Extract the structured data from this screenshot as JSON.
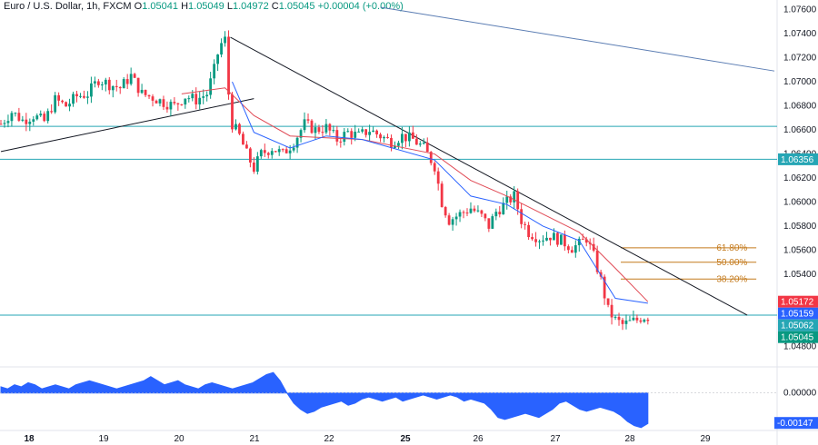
{
  "legend": {
    "symbol": "Euro / U.S. Dollar, 1h, FXCM",
    "open_label": "O",
    "open": "1.05041",
    "high_label": "H",
    "high": "1.05049",
    "low_label": "L",
    "low": "1.04972",
    "close_label": "C",
    "close": "1.05045",
    "change": "+0.00004 (+0.00%)"
  },
  "colors": {
    "up": "#089981",
    "down": "#f23645",
    "ema_fast": "#2962ff",
    "ema_slow": "#e04a55",
    "hline": "#26a6b5",
    "trendline": "#131722",
    "channel": "#5b7db3",
    "fib": "#c47a1c",
    "osc": "#2962ff"
  },
  "chart_data": [
    {
      "type": "candlestick",
      "title": "",
      "ylim": [
        1.0466,
        1.0762
      ],
      "y_ticks": [
        "1.07600",
        "1.07400",
        "1.07200",
        "1.07000",
        "1.06800",
        "1.06600",
        "1.06400",
        "1.06200",
        "1.06000",
        "1.05800",
        "1.05600",
        "1.05400",
        "1.04800"
      ],
      "y_tick_values": [
        1.076,
        1.074,
        1.072,
        1.07,
        1.068,
        1.066,
        1.064,
        1.062,
        1.06,
        1.058,
        1.056,
        1.054,
        1.048
      ],
      "x_ticks": [
        "18",
        "19",
        "20",
        "21",
        "22",
        "25",
        "26",
        "27",
        "28",
        "29"
      ],
      "x_tick_bold": [
        "18",
        "25"
      ],
      "price_tags": [
        {
          "label": "1.06356",
          "value": 1.06356,
          "color": "#26a6b5"
        },
        {
          "label": "1.05172",
          "value": 1.05172,
          "color": "#f23645"
        },
        {
          "label": "1.05159",
          "value": 1.05159,
          "color": "#2962ff"
        },
        {
          "label": "1.05062",
          "value": 1.05062,
          "color": "#26a6b5"
        },
        {
          "label": "1.05045",
          "value": 1.05045,
          "color": "#089981"
        }
      ],
      "horizontal_levels": [
        1.0663,
        1.06356,
        1.0506
      ],
      "fib_levels": [
        {
          "label": "61.80%",
          "value": 1.0562
        },
        {
          "label": "50.00%",
          "value": 1.055
        },
        {
          "label": "38.20%",
          "value": 1.0536
        }
      ],
      "close_path": [
        [
          0,
          1.0665
        ],
        [
          6,
          1.0675
        ],
        [
          12,
          1.0668
        ],
        [
          18,
          1.0672
        ],
        [
          24,
          1.0667
        ],
        [
          30,
          1.0685
        ],
        [
          36,
          1.068
        ],
        [
          42,
          1.0688
        ],
        [
          48,
          1.069
        ],
        [
          54,
          1.0702
        ],
        [
          60,
          1.0698
        ],
        [
          66,
          1.0695
        ],
        [
          72,
          1.0705
        ],
        [
          78,
          1.069
        ],
        [
          84,
          1.0687
        ],
        [
          90,
          1.0683
        ],
        [
          96,
          1.068
        ],
        [
          102,
          1.0688
        ],
        [
          108,
          1.0685
        ],
        [
          114,
          1.069
        ],
        [
          118,
          1.071
        ],
        [
          121,
          1.073
        ],
        [
          124,
          1.0735
        ],
        [
          126,
          1.069
        ],
        [
          128,
          1.0665
        ],
        [
          132,
          1.0655
        ],
        [
          136,
          1.064
        ],
        [
          140,
          1.0628
        ],
        [
          144,
          1.064
        ],
        [
          150,
          1.0645
        ],
        [
          156,
          1.064
        ],
        [
          162,
          1.065
        ],
        [
          168,
          1.0665
        ],
        [
          174,
          1.066
        ],
        [
          180,
          1.0662
        ],
        [
          186,
          1.0652
        ],
        [
          192,
          1.0658
        ],
        [
          198,
          1.0655
        ],
        [
          204,
          1.066
        ],
        [
          210,
          1.0655
        ],
        [
          216,
          1.065
        ],
        [
          222,
          1.0655
        ],
        [
          228,
          1.0652
        ],
        [
          234,
          1.0645
        ],
        [
          240,
          1.063
        ],
        [
          244,
          1.06
        ],
        [
          248,
          1.0585
        ],
        [
          254,
          1.059
        ],
        [
          260,
          1.0595
        ],
        [
          266,
          1.0588
        ],
        [
          270,
          1.058
        ],
        [
          274,
          1.0592
        ],
        [
          280,
          1.06
        ],
        [
          284,
          1.0605
        ],
        [
          288,
          1.0585
        ],
        [
          292,
          1.0575
        ],
        [
          298,
          1.057
        ],
        [
          304,
          1.0572
        ],
        [
          310,
          1.0568
        ],
        [
          316,
          1.0562
        ],
        [
          320,
          1.0565
        ],
        [
          324,
          1.057
        ],
        [
          328,
          1.0555
        ],
        [
          332,
          1.0535
        ],
        [
          336,
          1.051
        ],
        [
          340,
          1.0502
        ],
        [
          344,
          1.0498
        ],
        [
          348,
          1.05
        ],
        [
          352,
          1.0502
        ],
        [
          355,
          1.0505
        ],
        [
          358,
          1.05045
        ]
      ],
      "trendlines": [
        {
          "name": "support",
          "from": [
            0,
            1.0642
          ],
          "to": [
            140,
            1.0686
          ],
          "color": "#131722"
        },
        {
          "name": "down",
          "from": [
            127,
            1.0737
          ],
          "to": [
            413,
            1.0506
          ],
          "color": "#131722"
        },
        {
          "name": "channel",
          "from": [
            210,
            1.0762
          ],
          "to": [
            428,
            1.0709
          ],
          "color": "#5b7db3"
        }
      ],
      "ema_fast": [
        [
          128,
          1.07
        ],
        [
          140,
          1.0658
        ],
        [
          160,
          1.0645
        ],
        [
          180,
          1.0655
        ],
        [
          200,
          1.0652
        ],
        [
          240,
          1.0635
        ],
        [
          260,
          1.0605
        ],
        [
          280,
          1.0598
        ],
        [
          300,
          1.058
        ],
        [
          320,
          1.0568
        ],
        [
          340,
          1.052
        ],
        [
          358,
          1.05159
        ]
      ],
      "ema_slow": [
        [
          100,
          1.069
        ],
        [
          124,
          1.0695
        ],
        [
          140,
          1.0672
        ],
        [
          160,
          1.0655
        ],
        [
          200,
          1.0652
        ],
        [
          240,
          1.064
        ],
        [
          260,
          1.0618
        ],
        [
          280,
          1.0605
        ],
        [
          300,
          1.059
        ],
        [
          320,
          1.0575
        ],
        [
          340,
          1.0545
        ],
        [
          358,
          1.05172
        ]
      ]
    },
    {
      "type": "area",
      "title": "",
      "ylim": [
        -0.00175,
        0.0011
      ],
      "y_ticks": [
        "0.00000",
        "-0.00147"
      ],
      "y_tick_values": [
        0.0,
        -0.00147
      ],
      "values": [
        0.0003,
        0.0002,
        0.0004,
        0.0003,
        0.0005,
        0.0004,
        0.0002,
        0.0003,
        0.0004,
        0.0003,
        0.0002,
        0.0004,
        0.0005,
        0.0006,
        0.0005,
        0.0004,
        0.0003,
        0.0002,
        0.0003,
        0.0004,
        0.0005,
        0.0006,
        0.0008,
        0.0006,
        0.0004,
        0.0005,
        0.0006,
        0.0004,
        0.0003,
        0.0002,
        0.0004,
        0.0005,
        0.0004,
        0.0003,
        0.0002,
        0.0003,
        0.0004,
        0.0005,
        0.0007,
        0.0009,
        0.001,
        0.0006,
        0.0,
        -0.0005,
        -0.0008,
        -0.001,
        -0.0009,
        -0.0007,
        -0.0006,
        -0.0005,
        -0.0004,
        -0.0006,
        -0.0005,
        -0.0003,
        -0.0002,
        -0.0003,
        -0.0004,
        -0.0003,
        -0.0002,
        -0.0004,
        -0.0003,
        -0.0002,
        -0.0001,
        -0.0002,
        -0.0003,
        -0.0002,
        -0.0001,
        -0.0002,
        -0.0004,
        -0.0003,
        -0.0004,
        -0.0005,
        -0.0008,
        -0.0012,
        -0.0013,
        -0.0012,
        -0.0011,
        -0.001,
        -0.0011,
        -0.0012,
        -0.001,
        -0.0008,
        -0.0005,
        -0.0004,
        -0.0006,
        -0.0008,
        -0.0009,
        -0.0008,
        -0.0007,
        -0.0008,
        -0.0009,
        -0.0011,
        -0.0014,
        -0.0016,
        -0.0017,
        -0.0015
      ]
    }
  ]
}
